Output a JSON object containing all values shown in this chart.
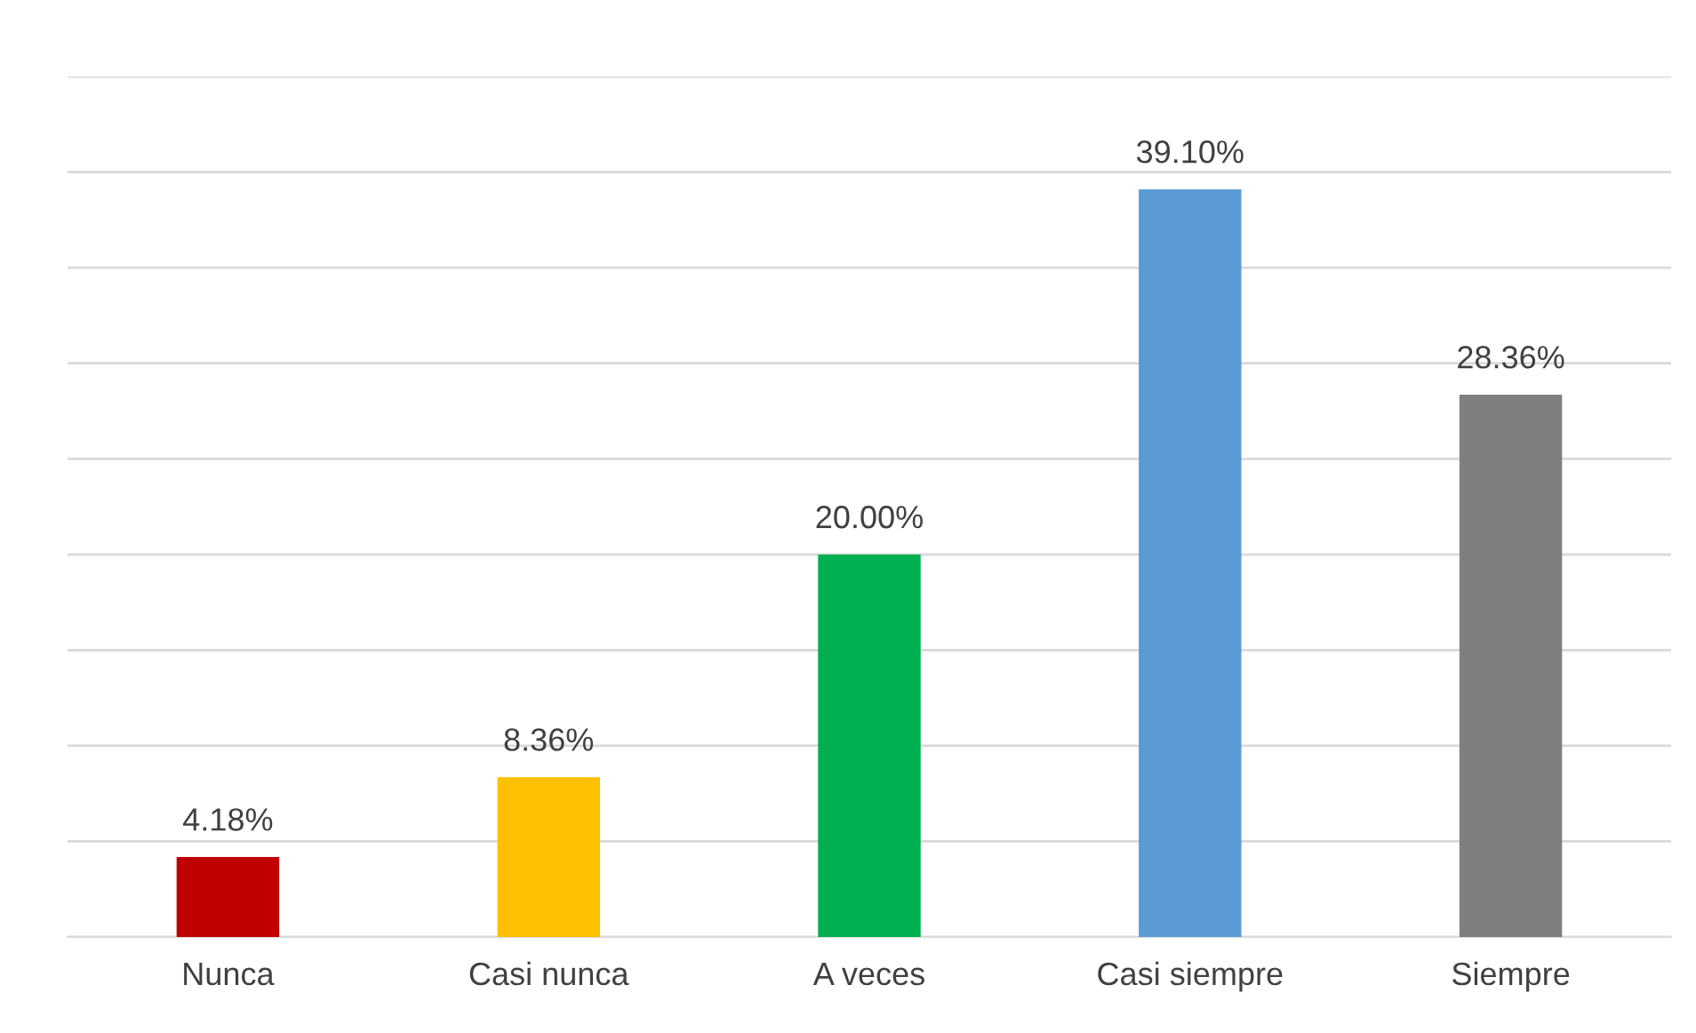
{
  "chart_data": {
    "type": "bar",
    "categories": [
      "Nunca",
      "Casi nunca",
      "A veces",
      "Casi siempre",
      "Siempre"
    ],
    "values": [
      4.18,
      8.36,
      20.0,
      39.1,
      28.36
    ],
    "colors": [
      "#c00000",
      "#ffc000",
      "#00b050",
      "#5b9bd5",
      "#7f7f7f"
    ],
    "value_labels": [
      "4.18%",
      "8.36%",
      "20.00%",
      "39.10%",
      "28.36%"
    ],
    "ylim": [
      0,
      45
    ],
    "yticks": [
      {
        "value": 0,
        "label": null
      },
      {
        "value": 5,
        "label": null
      },
      {
        "value": 10,
        "label": null
      },
      {
        "value": 15,
        "label": null
      },
      {
        "value": 20,
        "label": null
      },
      {
        "value": 25,
        "label": null
      },
      {
        "value": 30,
        "label": null
      },
      {
        "value": 35,
        "label": null
      },
      {
        "value": 40,
        "label": null
      },
      {
        "value": 45,
        "label": null
      }
    ],
    "grid": "y",
    "tick_labels": "x"
  }
}
